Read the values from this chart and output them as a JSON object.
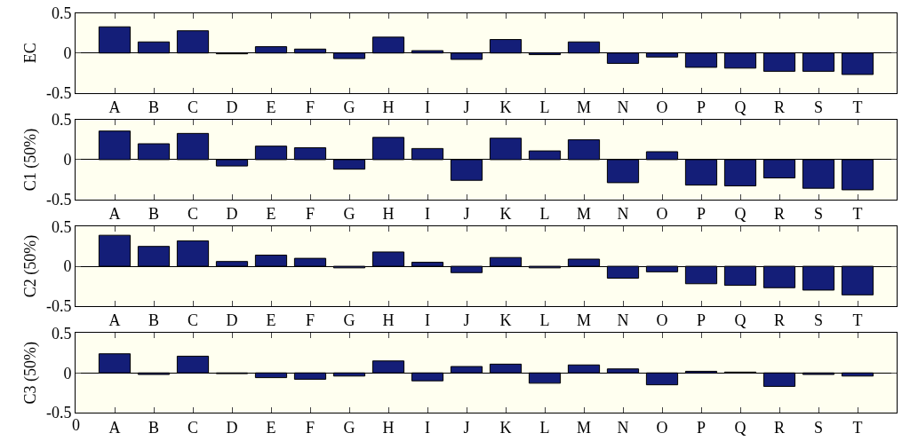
{
  "chart_data": [
    {
      "type": "bar",
      "ylabel": "EC",
      "categories": [
        "A",
        "B",
        "C",
        "D",
        "E",
        "F",
        "G",
        "H",
        "I",
        "J",
        "K",
        "L",
        "M",
        "N",
        "O",
        "P",
        "Q",
        "R",
        "S",
        "T"
      ],
      "color": "#141e78",
      "values": [
        0.33,
        0.14,
        0.28,
        -0.01,
        0.08,
        0.05,
        -0.07,
        0.2,
        0.03,
        -0.08,
        0.17,
        -0.02,
        0.14,
        -0.13,
        -0.05,
        -0.18,
        -0.19,
        -0.23,
        -0.23,
        -0.27
      ],
      "ylim": [
        -0.5,
        0.5
      ],
      "yticks": [
        -0.5,
        0,
        0.5
      ],
      "grid": "y",
      "legend": false
    },
    {
      "type": "bar",
      "ylabel": "C1 (50%)",
      "categories": [
        "A",
        "B",
        "C",
        "D",
        "E",
        "F",
        "G",
        "H",
        "I",
        "J",
        "K",
        "L",
        "M",
        "N",
        "O",
        "P",
        "Q",
        "R",
        "S",
        "T"
      ],
      "color": "#141e78",
      "values": [
        0.36,
        0.2,
        0.33,
        -0.08,
        0.17,
        0.15,
        -0.12,
        0.28,
        0.14,
        -0.26,
        0.27,
        0.11,
        0.25,
        -0.29,
        0.1,
        -0.32,
        -0.33,
        -0.23,
        -0.36,
        -0.38
      ],
      "ylim": [
        -0.5,
        0.5
      ],
      "yticks": [
        -0.5,
        0,
        0.5
      ],
      "grid": "y",
      "legend": false
    },
    {
      "type": "bar",
      "ylabel": "C2 (50%)",
      "categories": [
        "A",
        "B",
        "C",
        "D",
        "E",
        "F",
        "G",
        "H",
        "I",
        "J",
        "K",
        "L",
        "M",
        "N",
        "O",
        "P",
        "Q",
        "R",
        "S",
        "T"
      ],
      "color": "#141e78",
      "values": [
        0.39,
        0.25,
        0.32,
        0.06,
        0.14,
        0.1,
        -0.02,
        0.18,
        0.05,
        -0.08,
        0.11,
        -0.02,
        0.09,
        -0.15,
        -0.07,
        -0.22,
        -0.24,
        -0.27,
        -0.3,
        -0.36
      ],
      "ylim": [
        -0.5,
        0.5
      ],
      "yticks": [
        -0.5,
        0,
        0.5
      ],
      "grid": "y",
      "legend": false
    },
    {
      "type": "bar",
      "ylabel": "C3 (50%)",
      "categories": [
        "A",
        "B",
        "C",
        "D",
        "E",
        "F",
        "G",
        "H",
        "I",
        "J",
        "K",
        "L",
        "M",
        "N",
        "O",
        "P",
        "Q",
        "R",
        "S",
        "T"
      ],
      "color": "#141e78",
      "values": [
        0.24,
        -0.02,
        0.21,
        -0.01,
        -0.06,
        -0.08,
        -0.04,
        0.15,
        -0.1,
        0.08,
        0.11,
        -0.13,
        0.1,
        0.05,
        -0.15,
        0.02,
        0.01,
        -0.17,
        -0.02,
        -0.04
      ],
      "annotations": [
        "0"
      ],
      "ylim": [
        -0.5,
        0.5
      ],
      "yticks": [
        -0.5,
        0,
        0.5
      ],
      "grid": "y",
      "legend": false
    }
  ]
}
